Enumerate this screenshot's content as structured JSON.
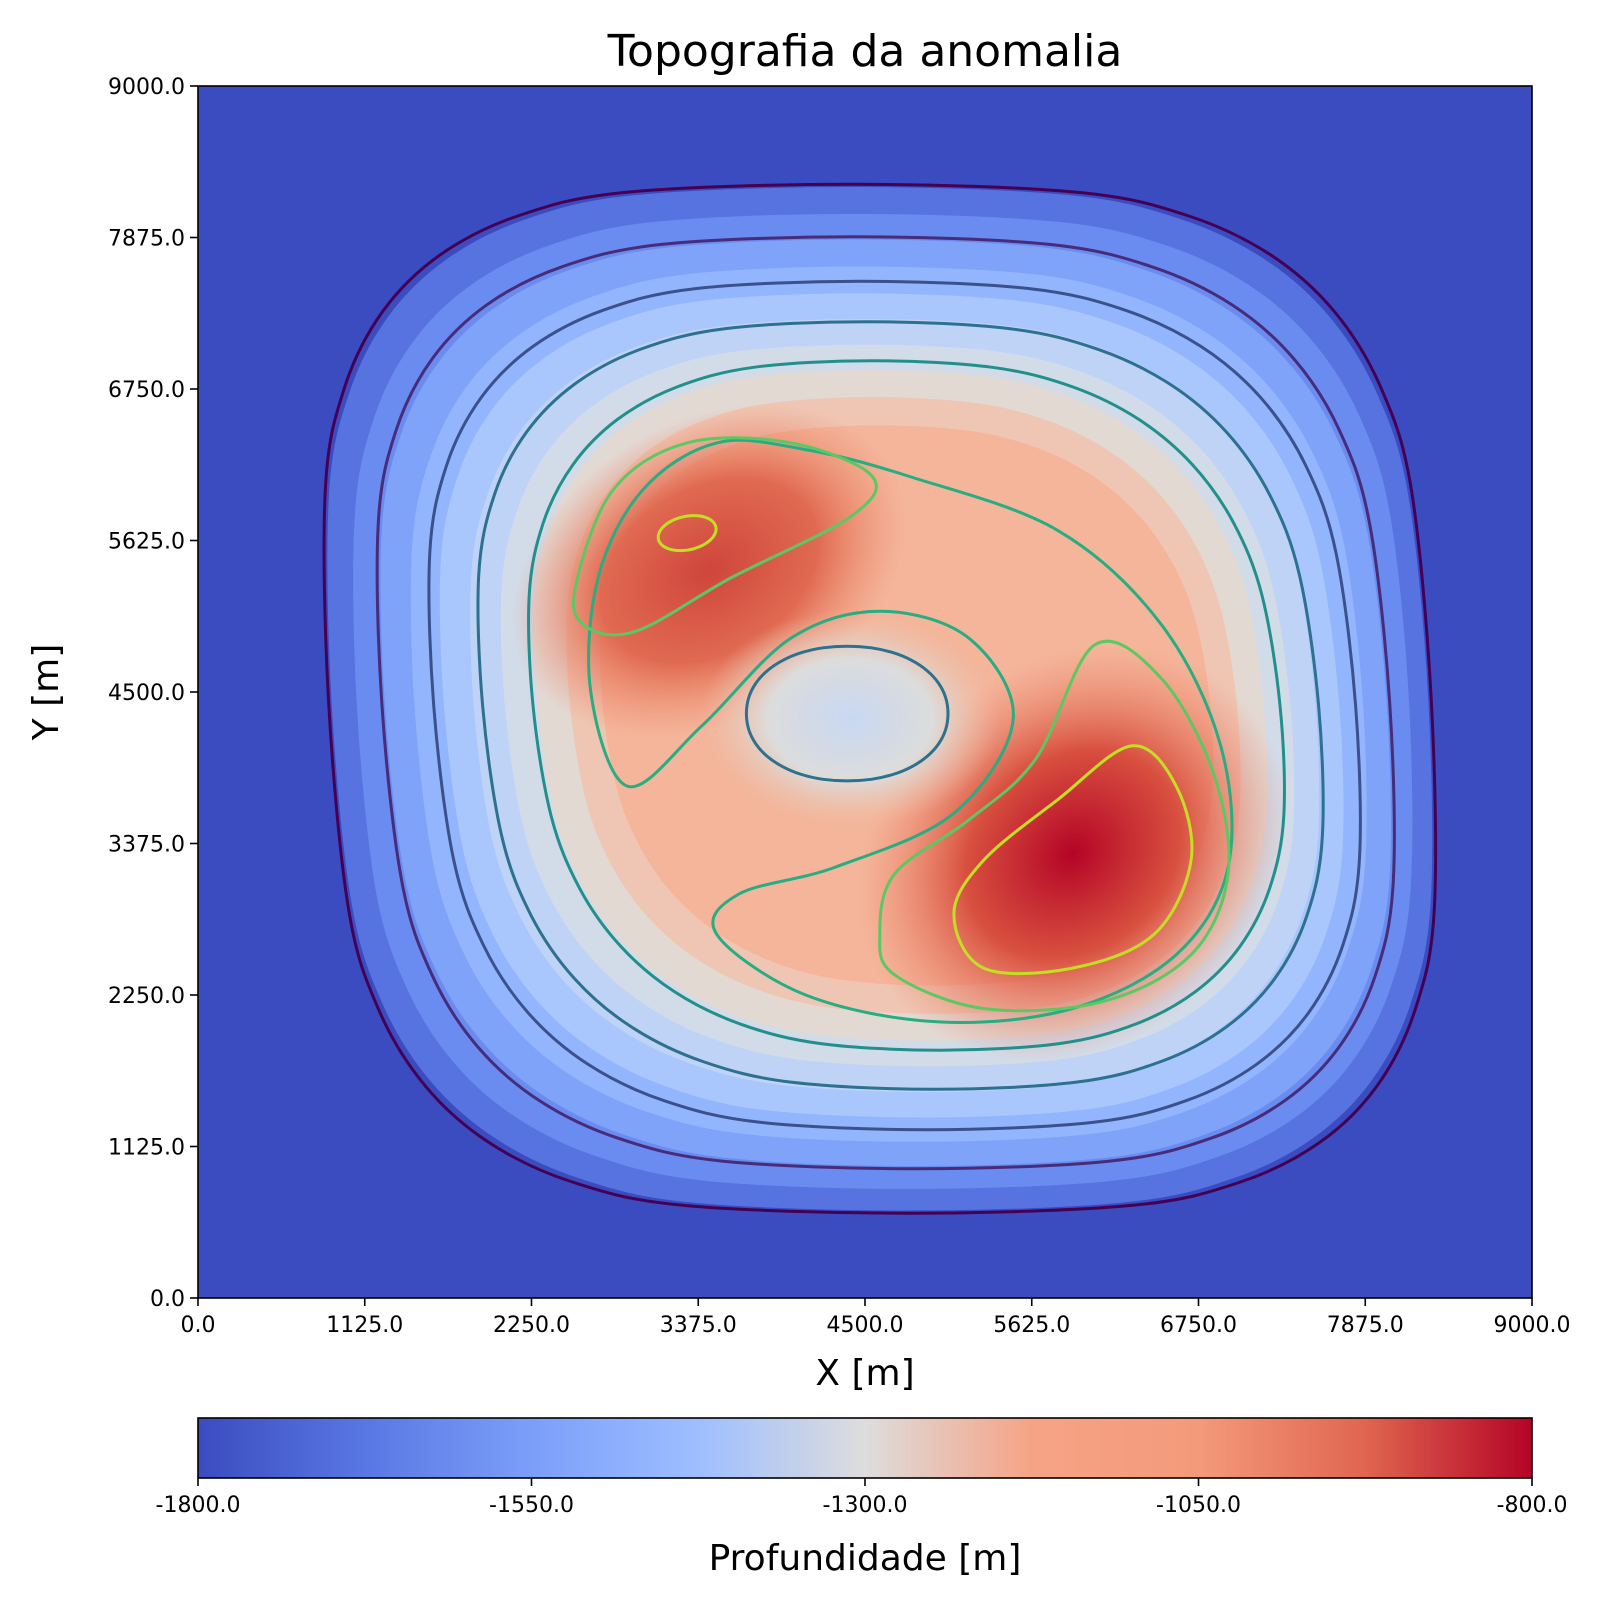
{
  "chart_data": {
    "type": "heatmap",
    "subtype": "filled contour map with contour lines",
    "title": "Topografia da anomalia",
    "xlabel": "X [m]",
    "ylabel": "Y [m]",
    "xlim": [
      0,
      9000
    ],
    "ylim": [
      0,
      9000
    ],
    "xticks": [
      "0.0",
      "1125.0",
      "2250.0",
      "3375.0",
      "4500.0",
      "5625.0",
      "6750.0",
      "7875.0",
      "9000.0"
    ],
    "yticks": [
      "0.0",
      "1125.0",
      "2250.0",
      "3375.0",
      "4500.0",
      "5625.0",
      "6750.0",
      "7875.0",
      "9000.0"
    ],
    "colormap": "coolwarm",
    "colorbar": {
      "label": "Profundidade [m]",
      "range": [
        -1800,
        -800
      ],
      "ticks": [
        "-1800.0",
        "-1550.0",
        "-1300.0",
        "-1050.0",
        "-800.0"
      ],
      "orientation": "horizontal",
      "placement": "bottom"
    },
    "background_value": -1800,
    "anomaly_extent": {
      "x": [
        900,
        8300
      ],
      "y": [
        650,
        8250
      ]
    },
    "features": [
      {
        "name": "deep-maximum",
        "x": 5900,
        "y": 3100,
        "value": -800
      },
      {
        "name": "secondary-maximum",
        "x": 3300,
        "y": 5700,
        "value": -880
      },
      {
        "name": "central-minimum",
        "x": 4400,
        "y": 4300,
        "value": -1330
      }
    ],
    "contour_colors": [
      "#440154",
      "#472c7a",
      "#3b518b",
      "#2c718e",
      "#21908d",
      "#27ad81",
      "#5cc863",
      "#c2df23"
    ],
    "grid": false
  }
}
